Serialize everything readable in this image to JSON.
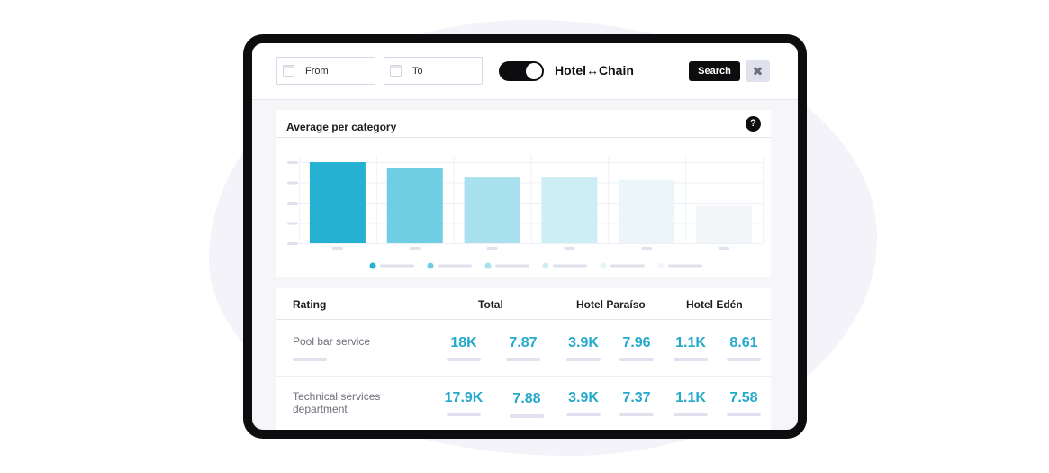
{
  "filters": {
    "from_label": "From",
    "to_label": "To",
    "mode_label": "Hotel↔Chain",
    "search_label": "Search",
    "close_symbol": "✖"
  },
  "chart_card": {
    "title": "Average per category",
    "help_symbol": "?"
  },
  "chart_data": {
    "type": "bar",
    "categories": [
      "",
      "",
      "",
      "",
      "",
      ""
    ],
    "values": [
      100,
      93,
      81,
      81,
      78,
      46
    ],
    "ylim": [
      0,
      100
    ],
    "colors": [
      "#24b1d2",
      "#6fcde4",
      "#a9e1ee",
      "#cdeef5",
      "#eaf6f9",
      "#f3f6f8"
    ],
    "legend_dot_colors": [
      "#24b1d2",
      "#6fcde4",
      "#a9e1ee",
      "#cdeef5",
      "#e6f5f8",
      "#f3f6f8"
    ],
    "grid": true,
    "legend": "bottom"
  },
  "table": {
    "headers": {
      "rating": "Rating",
      "total": "Total",
      "hotel_1": "Hotel Paraíso",
      "hotel_2": "Hotel Edén"
    },
    "accent_color": "#24a9cc",
    "rows": [
      {
        "label": "Pool bar service",
        "total_count": "18K",
        "total_avg": "7.87",
        "h1_count": "3.9K",
        "h1_avg": "7.96",
        "h2_count": "1.1K",
        "h2_avg": "8.61"
      },
      {
        "label": "Technical services department",
        "total_count": "17.9K",
        "total_avg": "7.88",
        "h1_count": "3.9K",
        "h1_avg": "7.37",
        "h2_count": "1.1K",
        "h2_avg": "7.58"
      }
    ]
  }
}
